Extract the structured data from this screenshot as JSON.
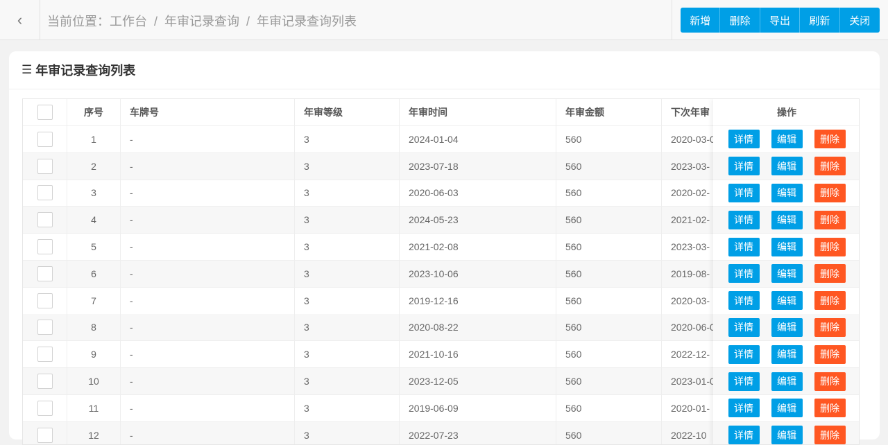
{
  "header": {
    "back_icon": "chevron-left-icon",
    "breadcrumb": [
      "当前位置：工作台",
      "年审记录查询",
      "年审记录查询列表"
    ],
    "separator": "/"
  },
  "toolbar": {
    "buttons": [
      "新增",
      "删除",
      "导出",
      "刷新",
      "关闭"
    ],
    "color": "#009fe6"
  },
  "card": {
    "icon": "layers-icon",
    "title": "年审记录查询列表"
  },
  "table": {
    "columns": [
      "序号",
      "车牌号",
      "年审等级",
      "年审时间",
      "年审金额",
      "下次年审",
      "操作"
    ],
    "actions": {
      "detail": "详情",
      "edit": "编辑",
      "delete": "删除",
      "detail_color": "#009fe6",
      "delete_color": "#ff5722"
    },
    "rows": [
      [
        "1",
        "-",
        "3",
        "2024-01-04",
        "560",
        "2020-03-0"
      ],
      [
        "2",
        "-",
        "3",
        "2023-07-18",
        "560",
        "2023-03-"
      ],
      [
        "3",
        "-",
        "3",
        "2020-06-03",
        "560",
        "2020-02-"
      ],
      [
        "4",
        "-",
        "3",
        "2024-05-23",
        "560",
        "2021-02-"
      ],
      [
        "5",
        "-",
        "3",
        "2021-02-08",
        "560",
        "2023-03-"
      ],
      [
        "6",
        "-",
        "3",
        "2023-10-06",
        "560",
        "2019-08-"
      ],
      [
        "7",
        "-",
        "3",
        "2019-12-16",
        "560",
        "2020-03-"
      ],
      [
        "8",
        "-",
        "3",
        "2020-08-22",
        "560",
        "2020-06-0"
      ],
      [
        "9",
        "-",
        "3",
        "2021-10-16",
        "560",
        "2022-12-"
      ],
      [
        "10",
        "-",
        "3",
        "2023-12-05",
        "560",
        "2023-01-0"
      ],
      [
        "11",
        "-",
        "3",
        "2019-06-09",
        "560",
        "2020-01-"
      ],
      [
        "12",
        "-",
        "3",
        "2022-07-23",
        "560",
        "2022-10"
      ]
    ]
  }
}
